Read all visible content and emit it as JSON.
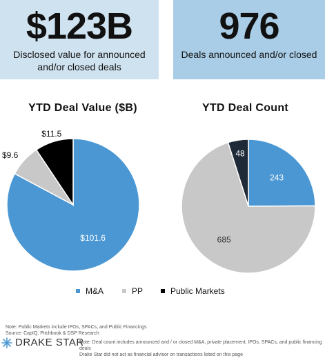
{
  "kpis": [
    {
      "value": "$123B",
      "description": "Disclosed value for announced and/or closed deals"
    },
    {
      "value": "976",
      "description": "Deals announced and/or closed"
    }
  ],
  "colors": {
    "ma": "#4a97d3",
    "pp": "#c8c8c8",
    "public": "#000000",
    "public_alt": "#1f2a38"
  },
  "chart_data": [
    {
      "type": "pie",
      "title": "YTD Deal Value ($B)",
      "slices": [
        {
          "category": "M&A",
          "value": 101.6,
          "label": "$101.6"
        },
        {
          "category": "PP",
          "value": 9.6,
          "label": "$9.6"
        },
        {
          "category": "Public Markets",
          "value": 11.5,
          "label": "$11.5"
        }
      ]
    },
    {
      "type": "pie",
      "title": "YTD Deal Count",
      "slices": [
        {
          "category": "M&A",
          "value": 243,
          "label": "243"
        },
        {
          "category": "PP",
          "value": 685,
          "label": "685"
        },
        {
          "category": "Public Markets",
          "value": 48,
          "label": "48"
        }
      ]
    }
  ],
  "legend": {
    "items": [
      "M&A",
      "PP",
      "Public Markets"
    ],
    "placement": "bottom"
  },
  "footnotes": {
    "left_line1": "Note: Public Markets include IPOs, SPACs, and Public Financings",
    "left_line2": "Source: CapIQ, Pitchbook & DSP Research",
    "right_line1": "Note: Deal count includes announced and / or closed M&A, private placement, IPOs, SPACs, and public financing deals",
    "right_line2": "Drake Star did not act as financial advisor on transactions listed on this page"
  },
  "logo": {
    "text": "DRAKE STAR",
    "icon": "star-burst-icon"
  }
}
